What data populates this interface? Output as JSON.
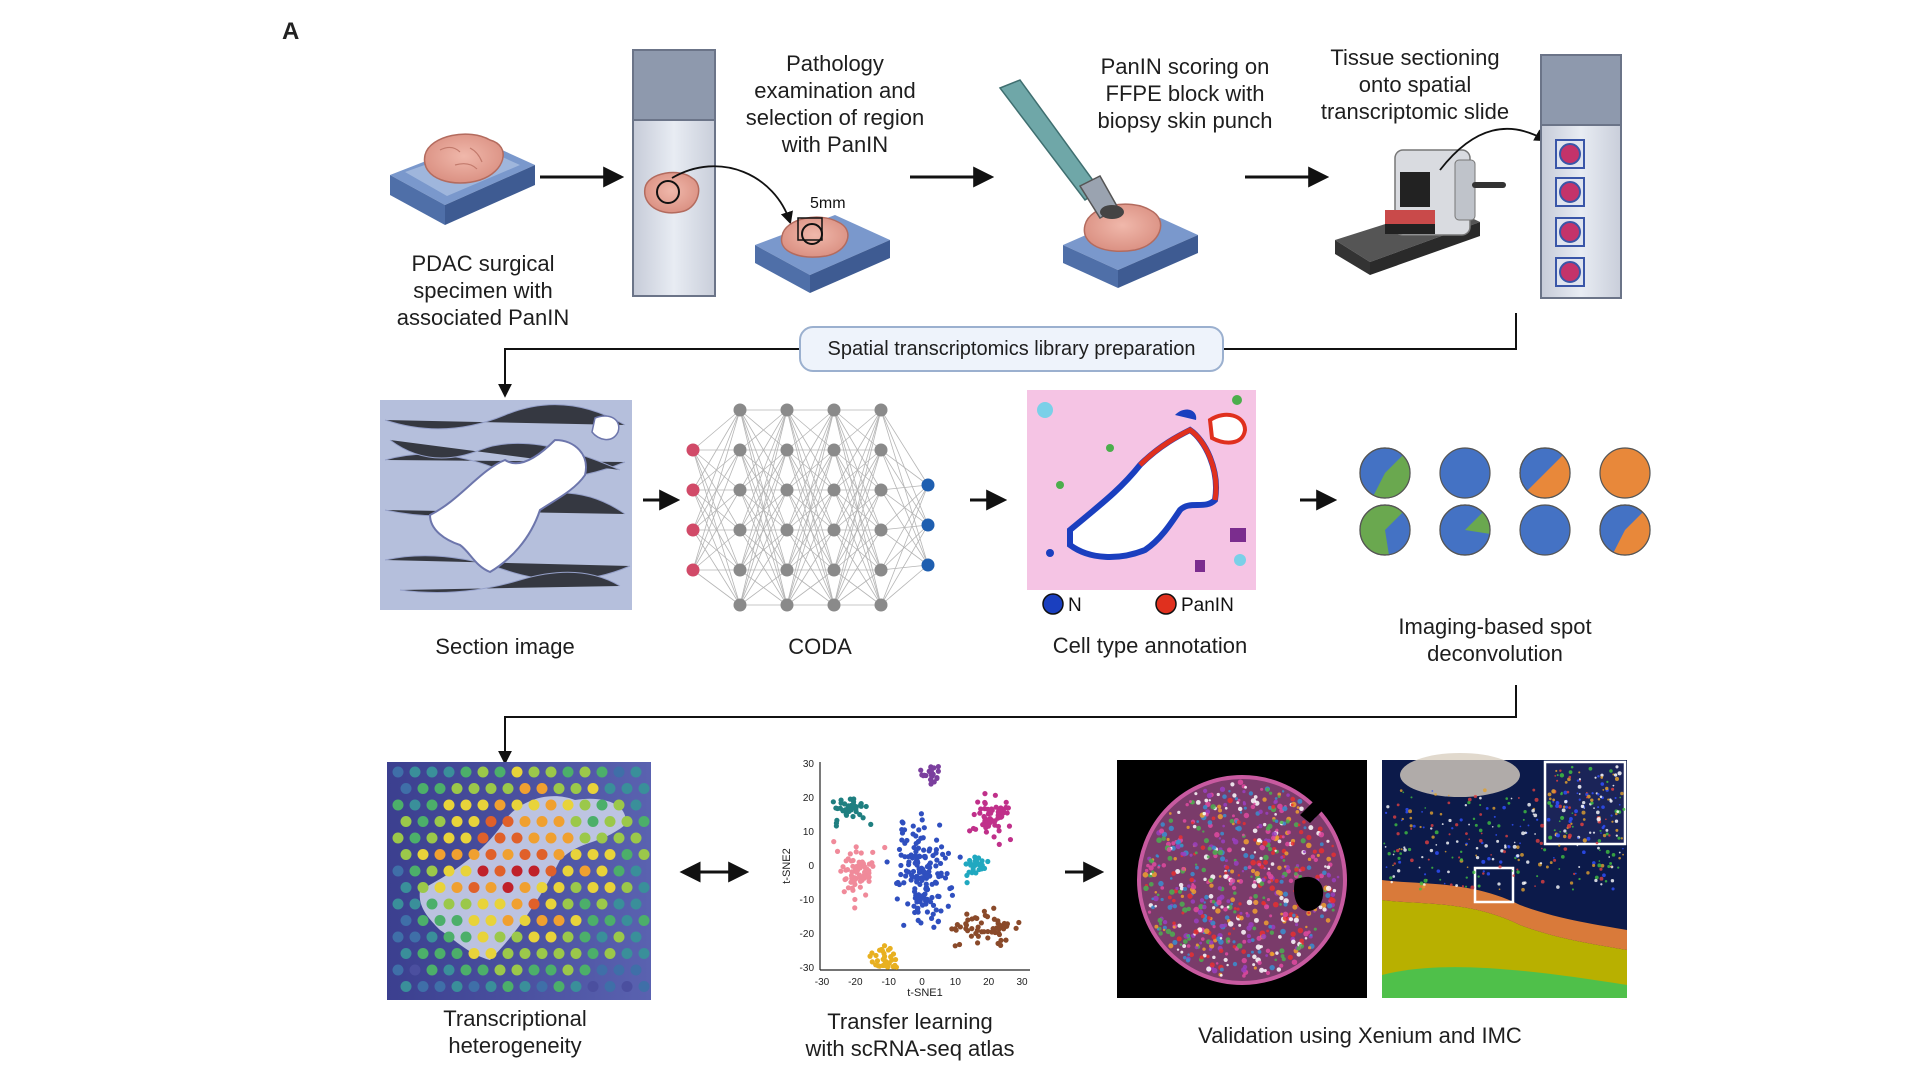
{
  "panel_letter": "A",
  "step_labels": {
    "specimen": "PDAC surgical\nspecimen with\nassociated PanIN",
    "pathology": "Pathology\nexamination and\nselection of region\nwith PanIN",
    "scale_note": "5mm",
    "scoring": "PanIN scoring on\nFFPE block with\nbiopsy skin punch",
    "sectioning": "Tissue sectioning\nonto spatial\ntranscriptomic slide",
    "library_prep": "Spatial transcriptomics library preparation",
    "section_image": "Section image",
    "coda": "CODA",
    "cell_annotation": "Cell type annotation",
    "deconvolution": "Imaging-based spot\ndeconvolution",
    "heterogeneity": "Transcriptional\nheterogeneity",
    "transfer": "Transfer learning\nwith scRNA-seq atlas",
    "validation": "Validation using Xenium and IMC"
  },
  "legend": {
    "items": [
      {
        "label": "N",
        "color": "#1a3fbf"
      },
      {
        "label": "PanIN",
        "color": "#e0301e"
      }
    ]
  },
  "tsne": {
    "xlabel": "t-SNE1",
    "ylabel": "t-SNE2",
    "x_ticks": [
      "-30",
      "-20",
      "-10",
      "0",
      "10",
      "20",
      "30"
    ],
    "y_ticks": [
      "30",
      "20",
      "10",
      "0",
      "-10",
      "-20",
      "-30"
    ]
  },
  "colors": {
    "arrow": "#111111",
    "slide_grey": "#8e99ad",
    "tissue_pink": "#e8a89a",
    "stage_blue": "#7f9ccc",
    "spot_pink": "#c4336a",
    "node_grey": "#8a8a8a",
    "node_red": "#d14a68",
    "node_blue": "#1f5fb0",
    "pie_blue": "#4472c4",
    "pie_green": "#6aa84f",
    "pie_orange": "#e8883a"
  }
}
